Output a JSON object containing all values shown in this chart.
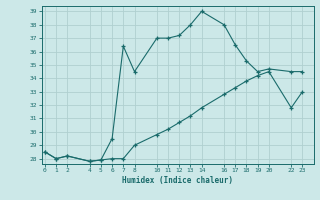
{
  "xlabel": "Humidex (Indice chaleur)",
  "bg_color": "#cce8e8",
  "grid_color": "#b0d0d0",
  "line_color": "#1a6b6b",
  "line1_x": [
    0,
    1,
    2,
    4,
    5,
    6,
    7,
    8,
    10,
    11,
    12,
    13,
    14,
    16,
    17,
    18,
    19,
    20,
    22,
    23
  ],
  "line1_y": [
    28.5,
    28.0,
    28.2,
    27.8,
    27.9,
    29.5,
    36.4,
    34.5,
    37.0,
    37.0,
    37.2,
    38.0,
    39.0,
    38.0,
    36.5,
    35.3,
    34.5,
    34.7,
    34.5,
    34.5
  ],
  "line2_x": [
    0,
    1,
    2,
    4,
    5,
    6,
    7,
    8,
    10,
    11,
    12,
    13,
    14,
    16,
    17,
    18,
    19,
    20,
    22,
    23
  ],
  "line2_y": [
    28.5,
    28.0,
    28.2,
    27.8,
    27.9,
    28.0,
    28.0,
    29.0,
    29.8,
    30.2,
    30.7,
    31.2,
    31.8,
    32.8,
    33.3,
    33.8,
    34.2,
    34.5,
    31.8,
    33.0
  ],
  "xticks": [
    0,
    1,
    2,
    4,
    5,
    6,
    7,
    8,
    10,
    11,
    12,
    13,
    14,
    16,
    17,
    18,
    19,
    20,
    22,
    23
  ],
  "yticks": [
    28,
    29,
    30,
    31,
    32,
    33,
    34,
    35,
    36,
    37,
    38,
    39
  ],
  "xlim": [
    -0.3,
    24.0
  ],
  "ylim": [
    27.6,
    39.4
  ]
}
